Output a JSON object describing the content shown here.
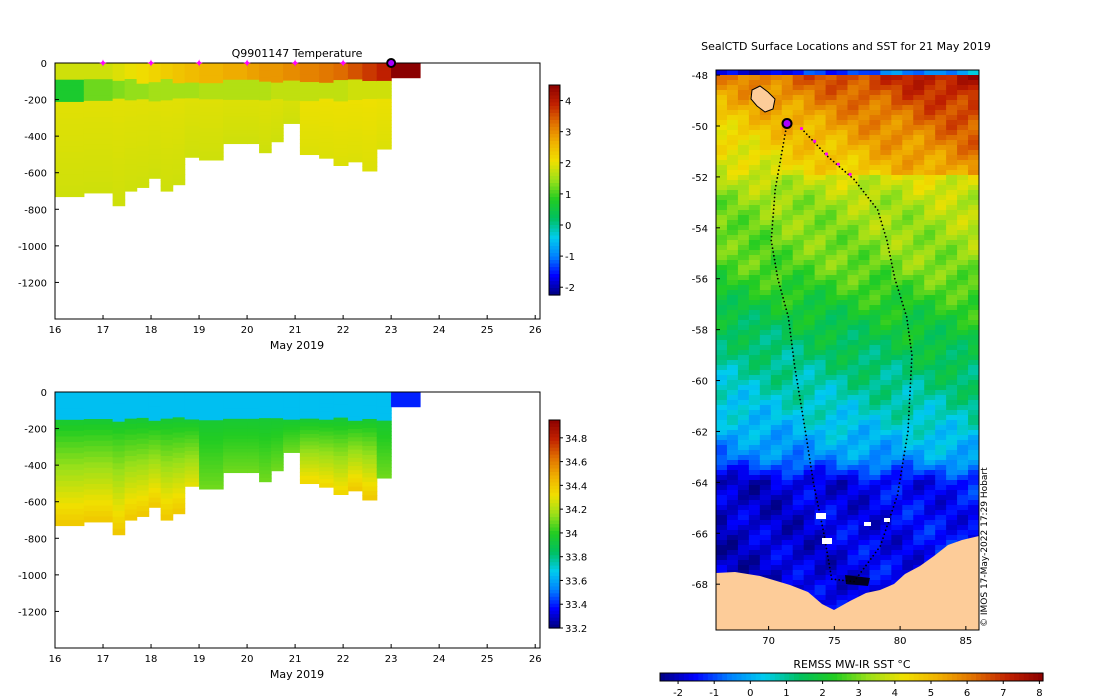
{
  "chart_data": [
    {
      "type": "heatmap",
      "title": "Q9901147  Temperature",
      "xlabel": "May 2019",
      "ylabel": "",
      "xlim": [
        16,
        26.1
      ],
      "ylim": [
        -1400,
        0
      ],
      "xticks": [
        16,
        17,
        18,
        19,
        20,
        21,
        22,
        23,
        24,
        25,
        26
      ],
      "yticks": [
        0,
        -200,
        -400,
        -600,
        -800,
        -1000,
        -1200
      ],
      "colorbar": {
        "min": -2.25,
        "max": 4.5,
        "ticks": [
          4,
          3,
          2,
          1,
          0,
          -1,
          -2
        ],
        "colors": [
          "#00007f",
          "#0000ff",
          "#0080ff",
          "#00ccee",
          "#00c060",
          "#22cc22",
          "#9ae01a",
          "#f0e000",
          "#f0b000",
          "#e07000",
          "#c02000",
          "#8b0000"
        ]
      },
      "markers": {
        "symbol": "star",
        "color": "#ff00ff",
        "x": [
          17,
          18,
          19,
          20,
          21,
          22
        ]
      },
      "current_position": {
        "x": 23
      },
      "profiles": [
        {
          "x0": 16,
          "x1": 16.6,
          "depth": 730,
          "surface": 1.8,
          "thermocline": 1.0
        },
        {
          "x0": 16.6,
          "x1": 17.2,
          "depth": 710,
          "surface": 1.8,
          "thermocline": 1.5
        },
        {
          "x0": 17.2,
          "x1": 17.45,
          "depth": 780,
          "surface": 1.9,
          "thermocline": 1.6
        },
        {
          "x0": 17.45,
          "x1": 17.7,
          "depth": 700,
          "surface": 2.0,
          "thermocline": 1.7
        },
        {
          "x0": 17.7,
          "x1": 17.95,
          "depth": 680,
          "surface": 2.1,
          "thermocline": 1.7
        },
        {
          "x0": 17.95,
          "x1": 18.2,
          "depth": 630,
          "surface": 2.2,
          "thermocline": 1.8
        },
        {
          "x0": 18.2,
          "x1": 18.45,
          "depth": 700,
          "surface": 2.3,
          "thermocline": 1.8
        },
        {
          "x0": 18.45,
          "x1": 18.7,
          "depth": 665,
          "surface": 2.4,
          "thermocline": 1.8
        },
        {
          "x0": 18.7,
          "x1": 19.0,
          "depth": 515,
          "surface": 2.5,
          "thermocline": 1.8
        },
        {
          "x0": 19.0,
          "x1": 19.5,
          "depth": 530,
          "surface": 2.6,
          "thermocline": 1.9
        },
        {
          "x0": 19.5,
          "x1": 20.0,
          "depth": 440,
          "surface": 2.7,
          "thermocline": 1.9
        },
        {
          "x0": 20.0,
          "x1": 20.25,
          "depth": 440,
          "surface": 2.8,
          "thermocline": 1.9
        },
        {
          "x0": 20.25,
          "x1": 20.5,
          "depth": 490,
          "surface": 2.9,
          "thermocline": 1.9
        },
        {
          "x0": 20.5,
          "x1": 20.75,
          "depth": 430,
          "surface": 2.9,
          "thermocline": 2.0
        },
        {
          "x0": 20.75,
          "x1": 21.1,
          "depth": 330,
          "surface": 3.0,
          "thermocline": 2.0
        },
        {
          "x0": 21.1,
          "x1": 21.5,
          "depth": 500,
          "surface": 3.1,
          "thermocline": 2.0
        },
        {
          "x0": 21.5,
          "x1": 21.8,
          "depth": 520,
          "surface": 3.2,
          "thermocline": 2.0
        },
        {
          "x0": 21.8,
          "x1": 22.1,
          "depth": 560,
          "surface": 3.3,
          "thermocline": 2.0
        },
        {
          "x0": 22.1,
          "x1": 22.4,
          "depth": 540,
          "surface": 3.5,
          "thermocline": 2.1
        },
        {
          "x0": 22.4,
          "x1": 22.7,
          "depth": 590,
          "surface": 3.7,
          "thermocline": 2.1
        },
        {
          "x0": 22.7,
          "x1": 23.0,
          "depth": 470,
          "surface": 3.9,
          "thermocline": 2.1
        },
        {
          "x0": 23.0,
          "x1": 23.6,
          "depth": 80,
          "surface": 4.5,
          "thermocline": 4.5
        }
      ]
    },
    {
      "type": "heatmap",
      "title": "",
      "xlabel": "May 2019",
      "ylabel": "",
      "xlim": [
        16,
        26.1
      ],
      "ylim": [
        -1400,
        0
      ],
      "xticks": [
        16,
        17,
        18,
        19,
        20,
        21,
        22,
        23,
        24,
        25,
        26
      ],
      "yticks": [
        0,
        -200,
        -400,
        -600,
        -800,
        -1000,
        -1200
      ],
      "colorbar": {
        "min": 33.2,
        "max": 34.95,
        "ticks": [
          34.8,
          34.6,
          34.4,
          34.2,
          34,
          33.8,
          33.6,
          33.4,
          33.2
        ],
        "colors": [
          "#00007f",
          "#0000ff",
          "#0080ff",
          "#00ccee",
          "#00c060",
          "#22cc22",
          "#9ae01a",
          "#f0e000",
          "#f0b000",
          "#e07000",
          "#c02000",
          "#8b0000"
        ]
      },
      "profiles": [
        {
          "x0": 16,
          "x1": 16.6,
          "depth": 730,
          "surface": 33.65,
          "deep": 34.4
        },
        {
          "x0": 16.6,
          "x1": 17.2,
          "depth": 710,
          "surface": 33.65,
          "deep": 34.4
        },
        {
          "x0": 17.2,
          "x1": 17.45,
          "depth": 780,
          "surface": 33.65,
          "deep": 34.4
        },
        {
          "x0": 17.45,
          "x1": 17.7,
          "depth": 700,
          "surface": 33.65,
          "deep": 34.4
        },
        {
          "x0": 17.7,
          "x1": 17.95,
          "depth": 680,
          "surface": 33.65,
          "deep": 34.4
        },
        {
          "x0": 17.95,
          "x1": 18.2,
          "depth": 630,
          "surface": 33.65,
          "deep": 34.4
        },
        {
          "x0": 18.2,
          "x1": 18.45,
          "depth": 700,
          "surface": 33.65,
          "deep": 34.4
        },
        {
          "x0": 18.45,
          "x1": 18.7,
          "depth": 665,
          "surface": 33.65,
          "deep": 34.4
        },
        {
          "x0": 18.7,
          "x1": 19.0,
          "depth": 515,
          "surface": 33.65,
          "deep": 34.3
        },
        {
          "x0": 19.0,
          "x1": 19.5,
          "depth": 530,
          "surface": 33.65,
          "deep": 34.1
        },
        {
          "x0": 19.5,
          "x1": 20.0,
          "depth": 440,
          "surface": 33.65,
          "deep": 34.1
        },
        {
          "x0": 20.0,
          "x1": 20.25,
          "depth": 440,
          "surface": 33.65,
          "deep": 34.1
        },
        {
          "x0": 20.25,
          "x1": 20.5,
          "depth": 490,
          "surface": 33.65,
          "deep": 34.1
        },
        {
          "x0": 20.5,
          "x1": 20.75,
          "depth": 430,
          "surface": 33.65,
          "deep": 34.1
        },
        {
          "x0": 20.75,
          "x1": 21.1,
          "depth": 330,
          "surface": 33.65,
          "deep": 34.1
        },
        {
          "x0": 21.1,
          "x1": 21.5,
          "depth": 500,
          "surface": 33.65,
          "deep": 34.35
        },
        {
          "x0": 21.5,
          "x1": 21.8,
          "depth": 520,
          "surface": 33.65,
          "deep": 34.35
        },
        {
          "x0": 21.8,
          "x1": 22.1,
          "depth": 560,
          "surface": 33.65,
          "deep": 34.35
        },
        {
          "x0": 22.1,
          "x1": 22.4,
          "depth": 540,
          "surface": 33.65,
          "deep": 34.4
        },
        {
          "x0": 22.4,
          "x1": 22.7,
          "depth": 590,
          "surface": 33.65,
          "deep": 34.4
        },
        {
          "x0": 22.7,
          "x1": 23.0,
          "depth": 470,
          "surface": 33.65,
          "deep": 34.1
        },
        {
          "x0": 23.0,
          "x1": 23.6,
          "depth": 80,
          "surface": 33.4,
          "deep": 33.4
        }
      ]
    },
    {
      "type": "heatmap",
      "title": "SealCTD Surface Locations and SST for 21 May 2019",
      "xlabel": "",
      "ylabel": "",
      "xlim": [
        66,
        86
      ],
      "ylim": [
        -69.8,
        -47.8
      ],
      "xticks": [
        70,
        75,
        80,
        85
      ],
      "yticks": [
        -48,
        -50,
        -52,
        -54,
        -56,
        -58,
        -60,
        -62,
        -64,
        -66,
        -68
      ],
      "colorbar": {
        "label": "REMSS MW-IR SST °C",
        "min": -2.5,
        "max": 8.1,
        "ticks": [
          -2,
          -1,
          0,
          1,
          2,
          3,
          4,
          5,
          6,
          7,
          8
        ],
        "orientation": "horizontal",
        "colors": [
          "#00007f",
          "#0000ff",
          "#0080ff",
          "#00ccee",
          "#00c060",
          "#22cc22",
          "#9ae01a",
          "#f0e000",
          "#f0b000",
          "#e07000",
          "#c02000",
          "#8b0000"
        ]
      },
      "sst_bands": [
        {
          "lat": -48.0,
          "sst": 5.8
        },
        {
          "lat": -49.5,
          "sst": 4.8
        },
        {
          "lat": -51.5,
          "sst": 3.8
        },
        {
          "lat": -53.0,
          "sst": 3.1
        },
        {
          "lat": -55.5,
          "sst": 2.6
        },
        {
          "lat": -57.5,
          "sst": 1.6
        },
        {
          "lat": -59.5,
          "sst": 0.9
        },
        {
          "lat": -61.5,
          "sst": 0.2
        },
        {
          "lat": -63.0,
          "sst": -0.6
        },
        {
          "lat": -64.0,
          "sst": -2.0
        },
        {
          "lat": -70.0,
          "sst": -2.0
        }
      ],
      "track": [
        {
          "lon": 71.4,
          "lat": -49.9
        },
        {
          "lon": 70.5,
          "lat": -52.5
        },
        {
          "lon": 70.2,
          "lat": -54.5
        },
        {
          "lon": 70.7,
          "lat": -56.0
        },
        {
          "lon": 71.5,
          "lat": -57.5
        },
        {
          "lon": 72.0,
          "lat": -59.5
        },
        {
          "lon": 72.8,
          "lat": -62.0
        },
        {
          "lon": 73.4,
          "lat": -64.0
        },
        {
          "lon": 74.2,
          "lat": -66.0
        },
        {
          "lon": 74.8,
          "lat": -67.8
        },
        {
          "lon": 76.5,
          "lat": -67.9
        },
        {
          "lon": 78.5,
          "lat": -66.5
        },
        {
          "lon": 79.8,
          "lat": -64.5
        },
        {
          "lon": 80.6,
          "lat": -62.0
        },
        {
          "lon": 80.9,
          "lat": -59.0
        },
        {
          "lon": 80.5,
          "lat": -57.5
        },
        {
          "lon": 79.6,
          "lat": -56.0
        },
        {
          "lon": 79.0,
          "lat": -54.5
        },
        {
          "lon": 78.3,
          "lat": -53.3
        },
        {
          "lon": 76.5,
          "lat": -52.1
        },
        {
          "lon": 74.5,
          "lat": -51.2
        },
        {
          "lon": 72.5,
          "lat": -50.1
        }
      ],
      "recent_positions": [
        {
          "lon": 72.5,
          "lat": -50.1
        },
        {
          "lon": 73.5,
          "lat": -50.6
        },
        {
          "lon": 74.4,
          "lat": -51.1
        },
        {
          "lon": 75.3,
          "lat": -51.5
        },
        {
          "lon": 76.2,
          "lat": -51.9
        }
      ],
      "current_position": {
        "lon": 71.4,
        "lat": -49.9
      },
      "credit": "© IMOS 17-May-2022 17:29 Hobart"
    }
  ]
}
